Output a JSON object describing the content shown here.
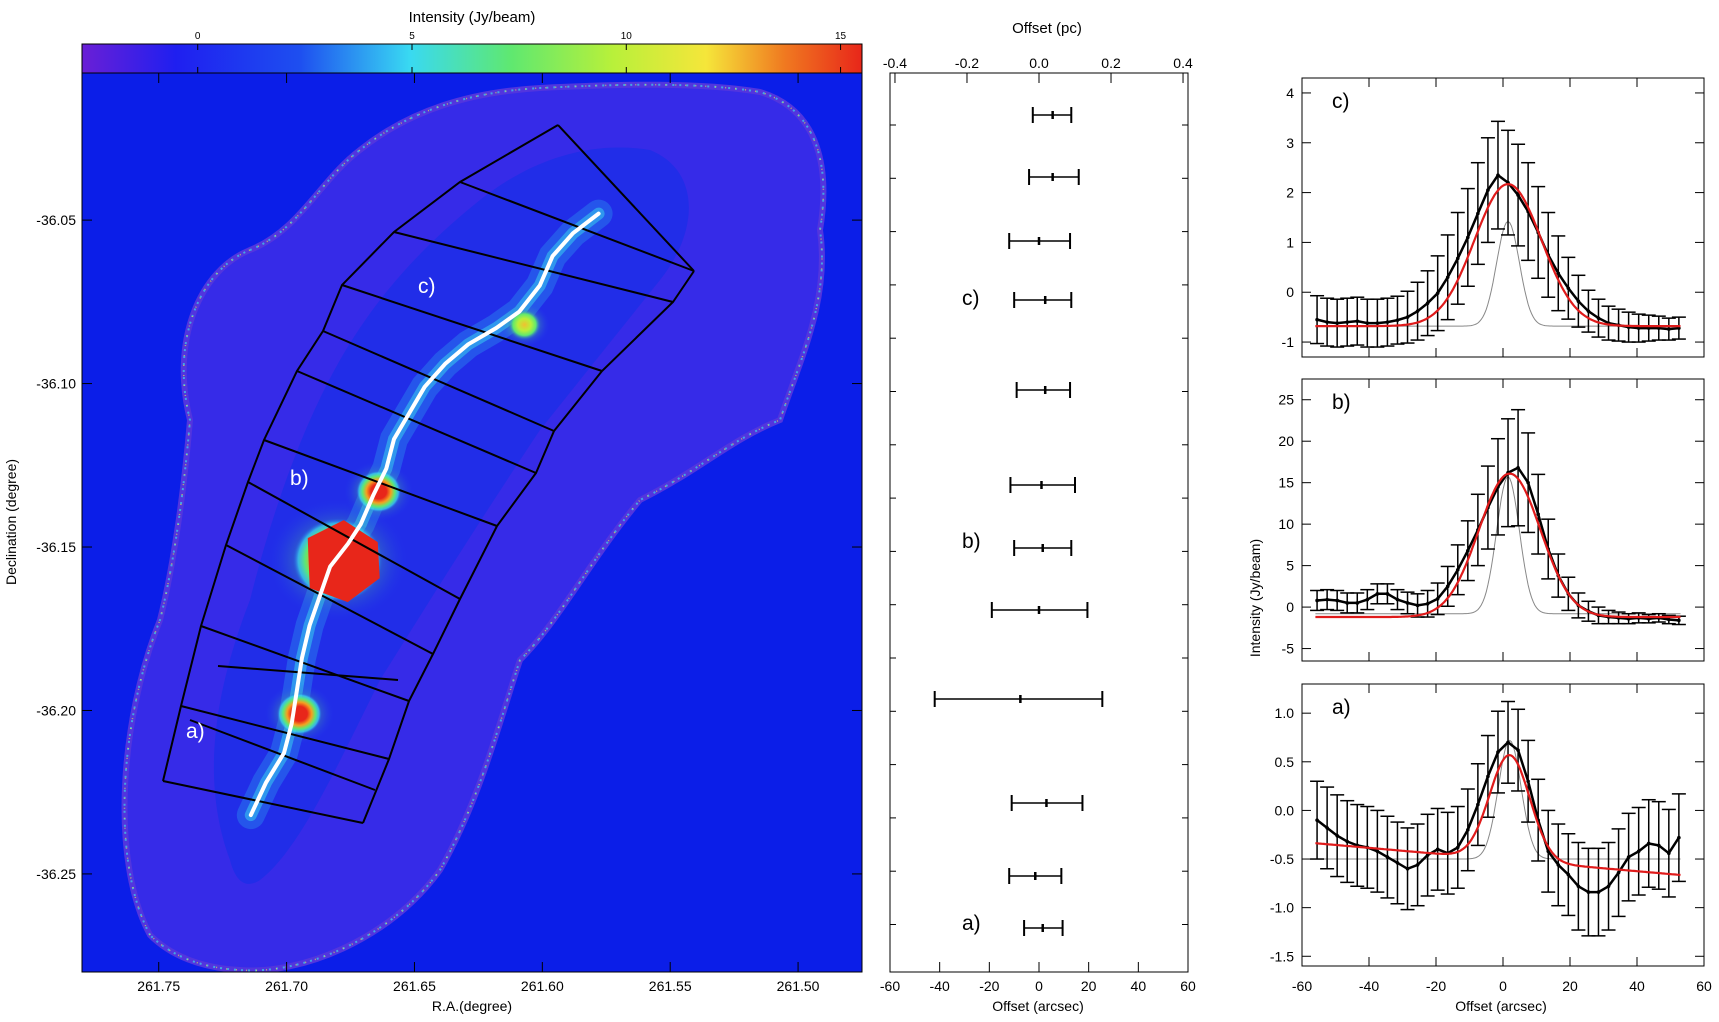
{
  "colors": {
    "map_background": "#0b1ee8",
    "colormap_stops": [
      "#6a1fd6",
      "#1f1ff0",
      "#1e4ff0",
      "#39d9f2",
      "#5fe870",
      "#b8f03a",
      "#f5e63a",
      "#f07a20",
      "#e8261a"
    ],
    "model_fit": "#e01b1b",
    "gaussian_beam": "#888888",
    "filament_crest": "#ffffff",
    "data_line": "#000000"
  },
  "chart_data": [
    {
      "type": "heatmap",
      "title": "Intensity (Jy/beam)",
      "xlabel": "R.A.(degree)",
      "ylabel": "Declination (degree)",
      "xlim": [
        261.78,
        261.475
      ],
      "ylim": [
        -36.28,
        -36.005
      ],
      "x_ticks": [
        "261.75",
        "261.70",
        "261.65",
        "261.60",
        "261.55",
        "261.50"
      ],
      "y_ticks": [
        "-36.05",
        "-36.10",
        "-36.15",
        "-36.20",
        "-36.25"
      ],
      "colorbar": {
        "range": [
          -2.7,
          15.5
        ],
        "ticks": [
          "0",
          "5",
          "10",
          "15"
        ]
      },
      "region_labels": [
        "a)",
        "b)",
        "c)"
      ],
      "filament_crest": [
        [
          261.714,
          -36.232
        ],
        [
          261.708,
          -36.222
        ],
        [
          261.701,
          -36.213
        ],
        [
          261.698,
          -36.204
        ],
        [
          261.696,
          -36.194
        ],
        [
          261.694,
          -36.184
        ],
        [
          261.691,
          -36.174
        ],
        [
          261.687,
          -36.165
        ],
        [
          261.683,
          -36.156
        ],
        [
          261.676,
          -36.149
        ],
        [
          261.671,
          -36.143
        ],
        [
          261.666,
          -36.134
        ],
        [
          261.661,
          -36.126
        ],
        [
          261.658,
          -36.117
        ],
        [
          261.652,
          -36.109
        ],
        [
          261.646,
          -36.101
        ],
        [
          261.638,
          -36.094
        ],
        [
          261.629,
          -36.088
        ],
        [
          261.618,
          -36.083
        ],
        [
          261.609,
          -36.078
        ],
        [
          261.601,
          -36.07
        ],
        [
          261.596,
          -36.061
        ],
        [
          261.588,
          -36.054
        ],
        [
          261.578,
          -36.048
        ]
      ],
      "bright_clumps": [
        {
          "ra": 261.68,
          "dec": -36.154,
          "level": 16
        },
        {
          "ra": 261.664,
          "dec": -36.133,
          "level": 14
        },
        {
          "ra": 261.695,
          "dec": -36.201,
          "level": 13
        },
        {
          "ra": 261.607,
          "dec": -36.082,
          "level": 9
        }
      ]
    },
    {
      "type": "scatter",
      "title": "Offset (pc)",
      "xlabel": "Offset (arcsec)",
      "xlim": [
        -60,
        60
      ],
      "top_axis_ticks": [
        "-0.4",
        "-0.2",
        "0.0",
        "0.2",
        "0.4"
      ],
      "bottom_axis_ticks": [
        "-60",
        "-40",
        "-20",
        "0",
        "20",
        "40",
        "60"
      ],
      "slice_labels": [
        "a)",
        "b)",
        "c)"
      ],
      "slices": [
        {
          "center": 1.5,
          "err_low": -6,
          "err_high": 9.5
        },
        {
          "center": -1.5,
          "err_low": -12,
          "err_high": 9
        },
        {
          "center": 3,
          "err_low": -11,
          "err_high": 17.5
        },
        {
          "center": -7.5,
          "err_low": -42,
          "err_high": 25.5
        },
        {
          "center": 0,
          "err_low": -19,
          "err_high": 19.5
        },
        {
          "center": 1.5,
          "err_low": -10,
          "err_high": 13
        },
        {
          "center": 1.0,
          "err_low": -11.5,
          "err_high": 14.5
        },
        {
          "center": 2.5,
          "err_low": -9,
          "err_high": 12.5
        },
        {
          "center": 2.5,
          "err_low": -10,
          "err_high": 13
        },
        {
          "center": 0,
          "err_low": -12,
          "err_high": 12.5
        },
        {
          "center": 5.5,
          "err_low": -4,
          "err_high": 16
        },
        {
          "center": 5.5,
          "err_low": -2.5,
          "err_high": 13
        }
      ]
    },
    {
      "type": "line",
      "panel_label": "c)",
      "xlim": [
        -60,
        60
      ],
      "ylim": [
        -1.3,
        4.3
      ],
      "y_ticks": [
        "-1",
        "0",
        "1",
        "2",
        "3",
        "4"
      ],
      "observed_x": [
        -55.5,
        -52.5,
        -49.5,
        -46.5,
        -43.5,
        -40.5,
        -37.5,
        -34.5,
        -31.5,
        -28.5,
        -25.5,
        -22.5,
        -19.5,
        -16.5,
        -13.5,
        -10.5,
        -7.5,
        -4.5,
        -1.5,
        1.5,
        4.5,
        7.5,
        10.5,
        13.5,
        16.5,
        19.5,
        22.5,
        25.5,
        28.5,
        31.5,
        34.5,
        37.5,
        40.5,
        43.5,
        46.5,
        49.5,
        52.5
      ],
      "observed_y": [
        -0.55,
        -0.6,
        -0.62,
        -0.6,
        -0.58,
        -0.62,
        -0.62,
        -0.6,
        -0.56,
        -0.5,
        -0.38,
        -0.22,
        -0.02,
        0.3,
        0.68,
        1.1,
        1.58,
        2.05,
        2.35,
        2.2,
        1.95,
        1.62,
        1.2,
        0.75,
        0.38,
        0.08,
        -0.18,
        -0.38,
        -0.52,
        -0.62,
        -0.66,
        -0.7,
        -0.72,
        -0.72,
        -0.72,
        -0.74,
        -0.72
      ],
      "error_bar": [
        0.48,
        0.48,
        0.48,
        0.48,
        0.48,
        0.48,
        0.48,
        0.48,
        0.48,
        0.52,
        0.58,
        0.65,
        0.75,
        0.85,
        0.92,
        0.98,
        1.02,
        1.05,
        1.08,
        1.05,
        1.02,
        0.98,
        0.92,
        0.85,
        0.75,
        0.62,
        0.52,
        0.42,
        0.38,
        0.34,
        0.32,
        0.3,
        0.28,
        0.26,
        0.24,
        0.22,
        0.22
      ],
      "fit": {
        "amplitude": 2.85,
        "center": 1.5,
        "sigma": 10.0,
        "baseline": -0.68,
        "slope": 0
      },
      "beam": {
        "amplitude": 2.1,
        "center": 1.5,
        "sigma": 3.4,
        "baseline": -0.68
      }
    },
    {
      "type": "line",
      "panel_label": "b)",
      "ylabel": "Intensity (Jy/beam)",
      "xlim": [
        -60,
        60
      ],
      "ylim": [
        -6.5,
        27.5
      ],
      "y_ticks": [
        "-5",
        "0",
        "5",
        "10",
        "15",
        "20",
        "25"
      ],
      "observed_x": [
        -55.5,
        -52.5,
        -49.5,
        -46.5,
        -43.5,
        -40.5,
        -37.5,
        -34.5,
        -31.5,
        -28.5,
        -25.5,
        -22.5,
        -19.5,
        -16.5,
        -13.5,
        -10.5,
        -7.5,
        -4.5,
        -1.5,
        1.5,
        4.5,
        7.5,
        10.5,
        13.5,
        16.5,
        19.5,
        22.5,
        25.5,
        28.5,
        31.5,
        34.5,
        37.5,
        40.5,
        43.5,
        46.5,
        49.5,
        52.5
      ],
      "observed_y": [
        0.8,
        0.9,
        0.8,
        0.5,
        0.5,
        0.9,
        1.6,
        1.6,
        0.9,
        0.5,
        0.2,
        0.4,
        1.0,
        2.5,
        4.5,
        6.8,
        9.3,
        12.0,
        14.5,
        16.2,
        16.8,
        15.0,
        11.2,
        7.0,
        3.8,
        1.6,
        0.2,
        -0.5,
        -1.0,
        -1.2,
        -1.3,
        -1.4,
        -1.3,
        -1.4,
        -1.3,
        -1.5,
        -1.6
      ],
      "error_bar": [
        1.2,
        1.2,
        1.2,
        1.2,
        1.2,
        1.2,
        1.2,
        1.2,
        1.2,
        1.3,
        1.4,
        1.6,
        1.9,
        2.4,
        3.0,
        3.6,
        4.3,
        5.0,
        5.8,
        6.5,
        7.0,
        6.0,
        4.8,
        3.6,
        2.6,
        2.0,
        1.5,
        1.2,
        1.0,
        0.8,
        0.7,
        0.6,
        0.6,
        0.5,
        0.5,
        0.5,
        0.5
      ],
      "fit": {
        "amplitude": 17.3,
        "center": 2.0,
        "sigma": 9.2,
        "baseline": -1.2,
        "slope": 0
      },
      "beam": {
        "amplitude": 16.5,
        "center": 1.5,
        "sigma": 3.4,
        "baseline": -0.8
      }
    },
    {
      "type": "line",
      "panel_label": "a)",
      "xlim": [
        -60,
        60
      ],
      "ylim": [
        -1.6,
        1.3
      ],
      "y_ticks": [
        "-1.5",
        "-1.0",
        "-0.5",
        "0.0",
        "0.5",
        "1.0"
      ],
      "observed_x": [
        -55.5,
        -52.5,
        -49.5,
        -46.5,
        -43.5,
        -40.5,
        -37.5,
        -34.5,
        -31.5,
        -28.5,
        -25.5,
        -22.5,
        -19.5,
        -16.5,
        -13.5,
        -10.5,
        -7.5,
        -4.5,
        -1.5,
        1.5,
        4.5,
        7.5,
        10.5,
        13.5,
        16.5,
        19.5,
        22.5,
        25.5,
        28.5,
        31.5,
        34.5,
        37.5,
        40.5,
        43.5,
        46.5,
        49.5,
        52.5
      ],
      "observed_y": [
        -0.1,
        -0.18,
        -0.26,
        -0.32,
        -0.36,
        -0.38,
        -0.42,
        -0.48,
        -0.54,
        -0.6,
        -0.56,
        -0.46,
        -0.4,
        -0.44,
        -0.38,
        -0.2,
        0.06,
        0.35,
        0.6,
        0.7,
        0.62,
        0.3,
        -0.1,
        -0.42,
        -0.56,
        -0.66,
        -0.78,
        -0.84,
        -0.84,
        -0.78,
        -0.64,
        -0.48,
        -0.42,
        -0.34,
        -0.36,
        -0.44,
        -0.28
      ],
      "error_bar": [
        0.4,
        0.42,
        0.42,
        0.42,
        0.42,
        0.42,
        0.42,
        0.42,
        0.42,
        0.42,
        0.42,
        0.42,
        0.42,
        0.42,
        0.42,
        0.42,
        0.42,
        0.42,
        0.42,
        0.42,
        0.42,
        0.42,
        0.42,
        0.42,
        0.42,
        0.42,
        0.45,
        0.45,
        0.45,
        0.45,
        0.45,
        0.45,
        0.45,
        0.45,
        0.45,
        0.45,
        0.45
      ],
      "fit": {
        "amplitude": 1.08,
        "center": 2.0,
        "sigma": 6.0,
        "baseline": -0.505,
        "slope": -0.003
      },
      "beam": {
        "amplitude": 1.22,
        "center": 2.0,
        "sigma": 3.4,
        "baseline": -0.5
      }
    }
  ],
  "shared_xlabel_profiles": "Offset (arcsec)",
  "profile_x_ticks": [
    "-60",
    "-40",
    "-20",
    "0",
    "20",
    "40",
    "60"
  ]
}
